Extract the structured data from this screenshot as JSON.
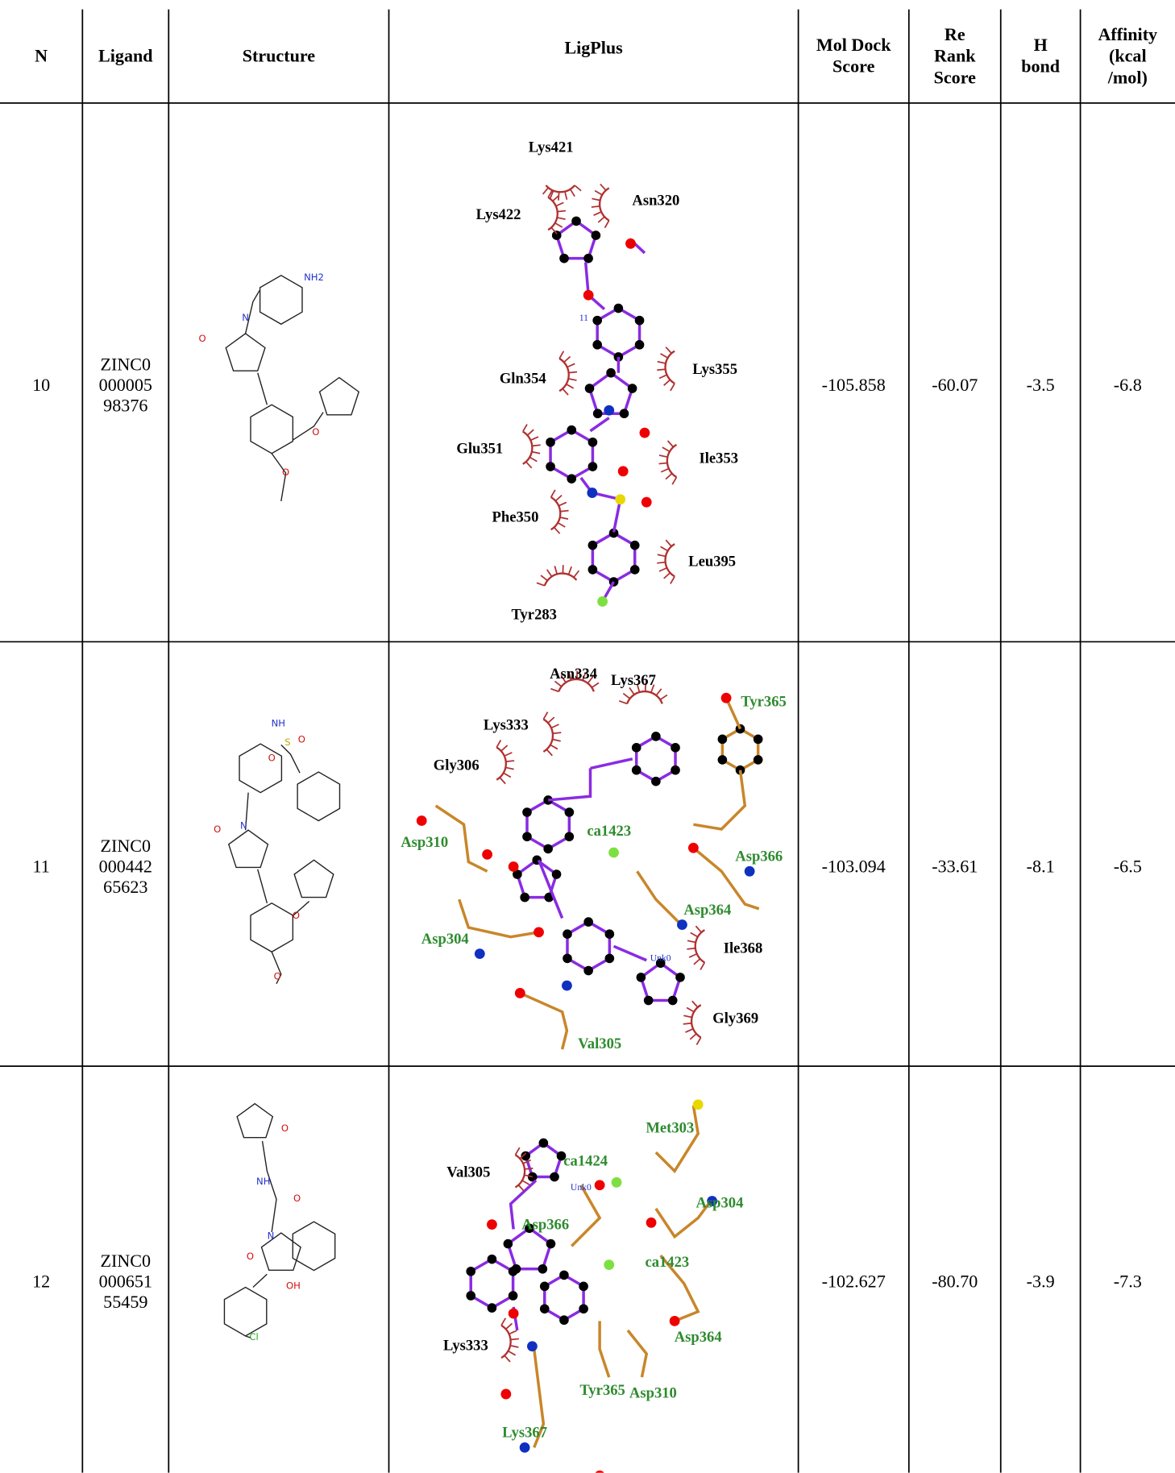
{
  "table": {
    "header": [
      "N",
      "Ligand",
      "Structure",
      "LigPlus",
      "Mol Dock Score",
      "Re Rank Score",
      "H bond",
      "Affinity (kcal /mol)"
    ],
    "rows": [
      {
        "n": "10",
        "ligand": "ZINC000000598376",
        "mol_dock_score": "-105.858",
        "rerank_score": "-60.07",
        "h_bond": "-3.5",
        "affinity": "-6.8",
        "structure_labels": [
          "NH2",
          "N",
          "O",
          "O",
          "O"
        ],
        "ligplus_labels": [
          "Lys421",
          "Lys422",
          "Asn320",
          "Gln354",
          "Lys355",
          "Glu351",
          "Ile353",
          "Phe350",
          "Leu395",
          "Tyr283",
          "11"
        ]
      },
      {
        "n": "11",
        "ligand": "ZINC000044265623",
        "mol_dock_score": "-103.094",
        "rerank_score": "-33.61",
        "h_bond": "-8.1",
        "affinity": "-6.5",
        "structure_labels": [
          "NH",
          "S",
          "O",
          "O",
          "N",
          "O",
          "O",
          "O"
        ],
        "ligplus_labels": [
          "Asn334",
          "Lys367",
          "Tyr365",
          "Lys333",
          "Gly306",
          "ca1423",
          "Asp310",
          "Asp366",
          "Asp364",
          "Asp304",
          "Ile368",
          "Unk0",
          "Gly369",
          "Val305"
        ]
      },
      {
        "n": "12",
        "ligand": "ZINC000065155459",
        "mol_dock_score": "-102.627",
        "rerank_score": "-80.70",
        "h_bond": "-3.9",
        "affinity": "-7.3",
        "structure_labels": [
          "O",
          "NH",
          "O",
          "N",
          "O",
          "OH",
          "Cl"
        ],
        "ligplus_labels": [
          "Met303",
          "ca1424",
          "Val305",
          "Asp304",
          "Asp366",
          "ca1423",
          "Lys333",
          "Asp364",
          "Tyr365",
          "Asp310",
          "Lys367",
          "Unk0"
        ]
      }
    ]
  }
}
